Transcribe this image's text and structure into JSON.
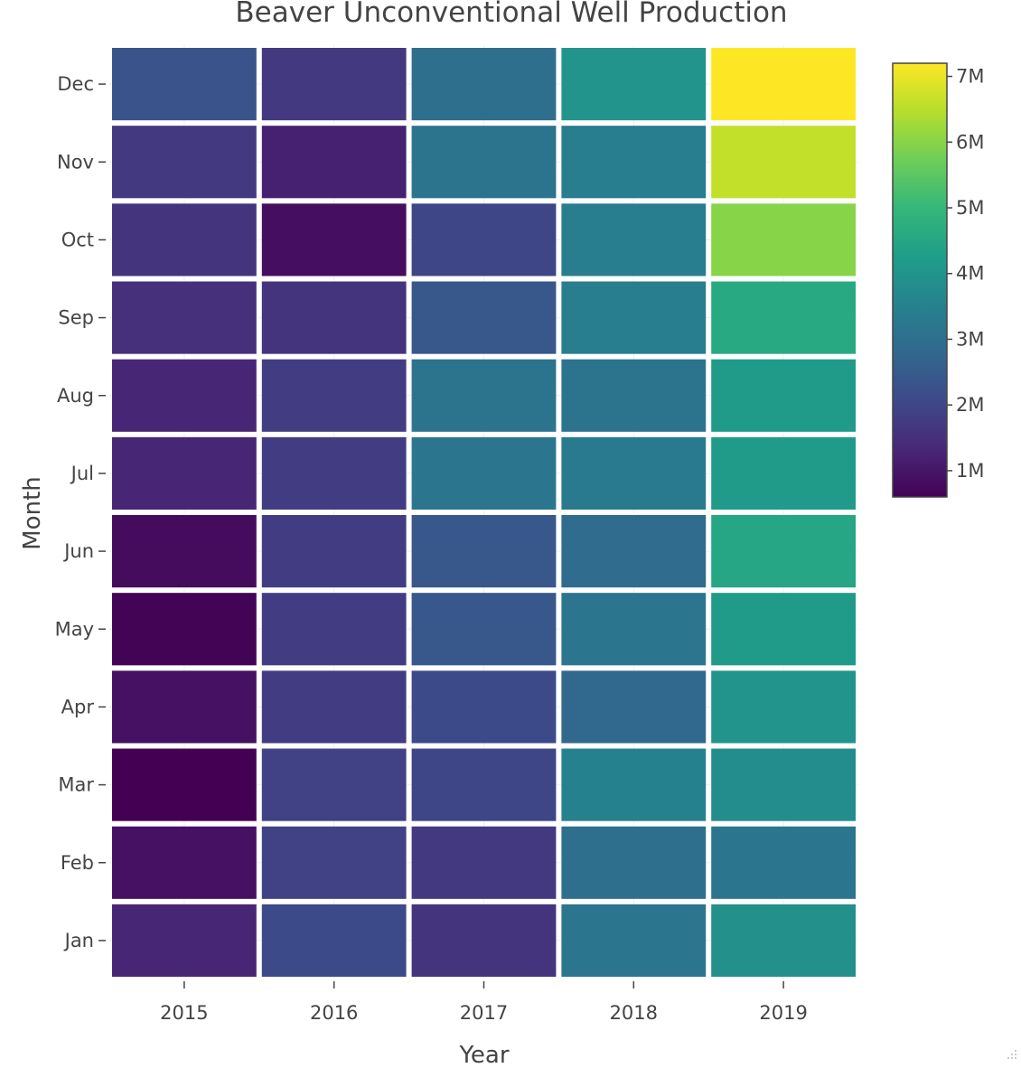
{
  "chart_data": {
    "type": "heatmap",
    "title": "Beaver Unconventional Well Production",
    "xlabel": "Year",
    "ylabel": "Month",
    "x": [
      "2015",
      "2016",
      "2017",
      "2018",
      "2019"
    ],
    "y": [
      "Jan",
      "Feb",
      "Mar",
      "Apr",
      "May",
      "Jun",
      "Jul",
      "Aug",
      "Sep",
      "Oct",
      "Nov",
      "Dec"
    ],
    "z": [
      [
        1.3,
        2.1,
        1.6,
        3.2,
        3.9
      ],
      [
        0.9,
        1.9,
        1.7,
        3.0,
        3.2
      ],
      [
        0.6,
        1.9,
        2.0,
        3.5,
        3.8
      ],
      [
        0.9,
        1.8,
        2.1,
        2.8,
        4.0
      ],
      [
        0.65,
        1.8,
        2.4,
        3.2,
        4.2
      ],
      [
        0.8,
        1.8,
        2.4,
        2.9,
        4.5
      ],
      [
        1.3,
        1.8,
        3.2,
        3.3,
        4.2
      ],
      [
        1.3,
        1.8,
        3.1,
        3.1,
        4.2
      ],
      [
        1.5,
        1.6,
        2.4,
        3.4,
        4.6
      ],
      [
        1.6,
        0.85,
        2.0,
        3.4,
        6.0
      ],
      [
        1.7,
        1.2,
        3.1,
        3.4,
        6.6
      ],
      [
        2.3,
        1.7,
        3.0,
        4.0,
        7.2
      ]
    ],
    "zrange": [
      0.6,
      7.2
    ],
    "colorscale": "Viridis",
    "colorbar": {
      "tickvals": [
        1,
        2,
        3,
        4,
        5,
        6,
        7
      ],
      "ticktext": [
        "1M",
        "2M",
        "3M",
        "4M",
        "5M",
        "6M",
        "7M"
      ]
    },
    "grid": true
  }
}
